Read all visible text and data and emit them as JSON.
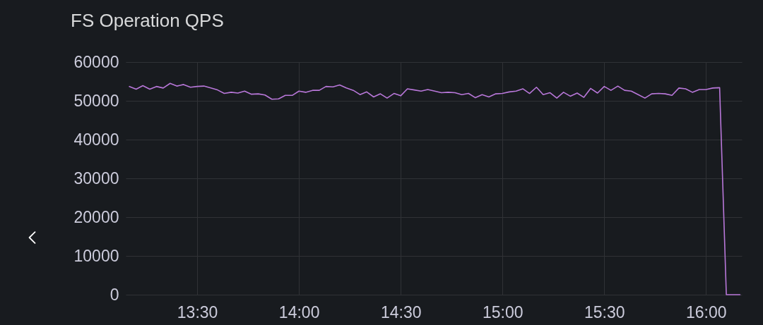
{
  "chart_data": {
    "type": "line",
    "title": "FS Operation QPS",
    "x": [
      13.167,
      13.2,
      13.233,
      13.267,
      13.3,
      13.333,
      13.367,
      13.4,
      13.433,
      13.467,
      13.5,
      13.533,
      13.567,
      13.6,
      13.633,
      13.667,
      13.7,
      13.733,
      13.767,
      13.8,
      13.833,
      13.867,
      13.9,
      13.933,
      13.967,
      14,
      14.033,
      14.067,
      14.1,
      14.133,
      14.167,
      14.2,
      14.233,
      14.267,
      14.3,
      14.333,
      14.367,
      14.4,
      14.433,
      14.467,
      14.5,
      14.533,
      14.567,
      14.6,
      14.633,
      14.667,
      14.7,
      14.733,
      14.767,
      14.8,
      14.833,
      14.867,
      14.9,
      14.933,
      14.967,
      15,
      15.033,
      15.067,
      15.1,
      15.133,
      15.167,
      15.2,
      15.233,
      15.267,
      15.3,
      15.333,
      15.367,
      15.4,
      15.433,
      15.467,
      15.5,
      15.533,
      15.567,
      15.6,
      15.633,
      15.667,
      15.7,
      15.733,
      15.767,
      15.8,
      15.833,
      15.867,
      15.9,
      15.933,
      15.967,
      16,
      16.033,
      16.067,
      16.1,
      16.133,
      16.167
    ],
    "series": [
      {
        "color": "#b877d9",
        "values": [
          53700,
          53000,
          53900,
          53000,
          53700,
          53300,
          54500,
          53800,
          54200,
          53500,
          53700,
          53800,
          53300,
          52800,
          51900,
          52200,
          52000,
          52500,
          51700,
          51800,
          51500,
          50400,
          50500,
          51400,
          51400,
          52500,
          52200,
          52700,
          52700,
          53700,
          53600,
          54100,
          53300,
          52700,
          51600,
          52300,
          51000,
          51800,
          50700,
          51900,
          51300,
          53100,
          52800,
          52500,
          52900,
          52500,
          52100,
          52200,
          52100,
          51600,
          51900,
          50800,
          51600,
          51000,
          51800,
          51900,
          52300,
          52500,
          53100,
          51900,
          53500,
          51600,
          52100,
          50700,
          52200,
          51200,
          52000,
          50900,
          53200,
          52000,
          53700,
          52700,
          53800,
          52700,
          52500,
          51600,
          50700,
          51800,
          51900,
          51800,
          51400,
          53300,
          53100,
          52200,
          52900,
          52900,
          53300,
          53400,
          0,
          0,
          0
        ]
      }
    ],
    "xlim": [
      13.149,
      16.176
    ],
    "xticks": [
      {
        "value": 13.5,
        "label": "13:30"
      },
      {
        "value": 14,
        "label": "14:00"
      },
      {
        "value": 14.5,
        "label": "14:30"
      },
      {
        "value": 15,
        "label": "15:00"
      },
      {
        "value": 15.5,
        "label": "15:30"
      },
      {
        "value": 16,
        "label": "16:00"
      }
    ],
    "ylim": [
      0,
      60000
    ],
    "yticks": [
      0,
      10000,
      20000,
      30000,
      40000,
      50000,
      60000
    ],
    "grid": true
  }
}
